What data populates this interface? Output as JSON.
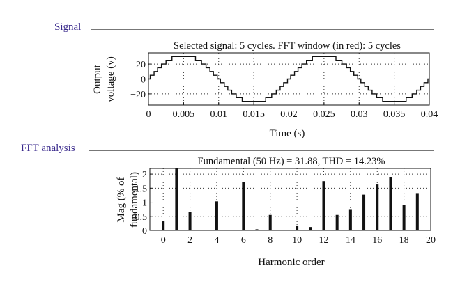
{
  "sections": {
    "signal_label": "Signal",
    "fft_label": "FFT analysis",
    "accent_color": "#3a2a8c"
  },
  "chart_data": [
    {
      "type": "line",
      "title": "Selected signal: 5 cycles. FFT window (in red): 5 cycles",
      "xlabel": "Time (s)",
      "ylabel_lines": [
        "Output",
        "voltage (v)"
      ],
      "xlim": [
        0,
        0.04
      ],
      "ylim": [
        -35,
        35
      ],
      "x_ticks": [
        0,
        0.005,
        0.01,
        0.015,
        0.02,
        0.025,
        0.03,
        0.035,
        0.04
      ],
      "x_tick_labels": [
        "0",
        "0.005",
        "0.01",
        "0.015",
        "0.02",
        "0.025",
        "0.03",
        "0.035",
        "0.04"
      ],
      "y_ticks": [
        20,
        0,
        -20
      ],
      "y_tick_labels": [
        "20",
        "0",
        "−20"
      ],
      "grid": "dotted",
      "series": [
        {
          "amplitude": 31.88,
          "frequency_hz": 50,
          "step_levels": 7,
          "step_size": 5,
          "color": "#111111"
        }
      ]
    },
    {
      "type": "bar",
      "title": "Fundamental (50 Hz) = 31.88, THD = 14.23%",
      "xlabel": "Harmonic order",
      "ylabel_lines": [
        "Mag (% of",
        "fundamental)"
      ],
      "xlim": [
        -1,
        20
      ],
      "ylim": [
        0,
        2.2
      ],
      "x_ticks": [
        0,
        2,
        4,
        6,
        8,
        10,
        12,
        14,
        16,
        18,
        20
      ],
      "x_tick_labels": [
        "0",
        "2",
        "4",
        "6",
        "8",
        "10",
        "12",
        "14",
        "16",
        "18",
        "20"
      ],
      "y_ticks": [
        0,
        0.5,
        1,
        1.5,
        2
      ],
      "y_tick_labels": [
        "0",
        "0.5",
        "1",
        "1.5",
        "2"
      ],
      "grid": "dotted",
      "categories": [
        0,
        1,
        2,
        3,
        4,
        5,
        6,
        7,
        8,
        9,
        10,
        11,
        12,
        13,
        14,
        15,
        16,
        17,
        18,
        19
      ],
      "values": [
        0.32,
        2.3,
        0.65,
        0.02,
        1.03,
        0.02,
        1.72,
        0.04,
        0.55,
        0.02,
        0.15,
        0.12,
        1.75,
        0.55,
        0.73,
        1.27,
        1.63,
        1.9,
        0.9,
        1.3
      ],
      "color": "#111111"
    }
  ]
}
